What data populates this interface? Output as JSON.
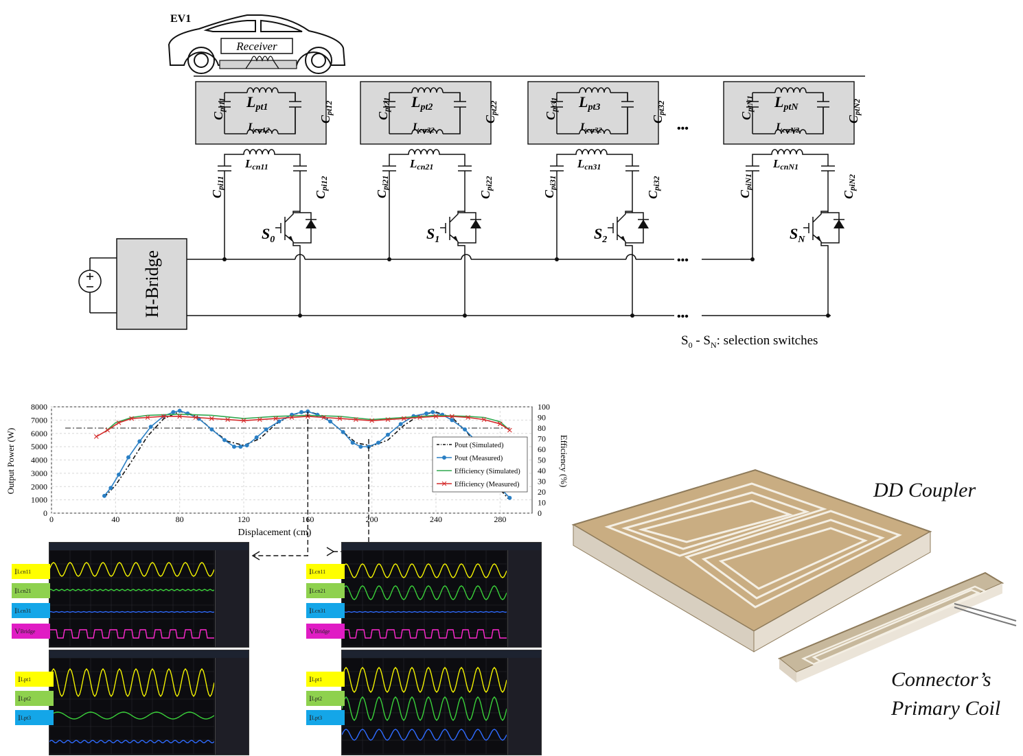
{
  "circuit": {
    "ev_label": "EV1",
    "receiver_label": "Receiver",
    "hbridge_label": "H-Bridge",
    "dots": "•••",
    "legend": {
      "s0": "S",
      "s0sub": "0",
      "dash": " - S",
      "snsub": "N",
      "text": ": selection switches"
    },
    "cells": [
      {
        "cl_b": "C",
        "cl_s": "pt11",
        "l_b": "L",
        "l_s": "pt1",
        "cr_b": "C",
        "cr_s": "pt12",
        "ln_b": "L",
        "ln_s": "cn12",
        "lc_b": "L",
        "lc_s": "cn11",
        "cpl_b": "C",
        "cpl_s": "pi11",
        "cpr_b": "C",
        "cpr_s": "pi12",
        "sw_b": "S",
        "sw_s": "0"
      },
      {
        "cl_b": "C",
        "cl_s": "pt21",
        "l_b": "L",
        "l_s": "pt2",
        "cr_b": "C",
        "cr_s": "pt22",
        "ln_b": "L",
        "ln_s": "cn22",
        "lc_b": "L",
        "lc_s": "cn21",
        "cpl_b": "C",
        "cpl_s": "pi21",
        "cpr_b": "C",
        "cpr_s": "pi22",
        "sw_b": "S",
        "sw_s": "1"
      },
      {
        "cl_b": "C",
        "cl_s": "pt31",
        "l_b": "L",
        "l_s": "pt3",
        "cr_b": "C",
        "cr_s": "pt32",
        "ln_b": "L",
        "ln_s": "cn32",
        "lc_b": "L",
        "lc_s": "cn31",
        "cpl_b": "C",
        "cpl_s": "pi31",
        "cpr_b": "C",
        "cpr_s": "pi32",
        "sw_b": "S",
        "sw_s": "2"
      },
      {
        "cl_b": "C",
        "cl_s": "ptN1",
        "l_b": "L",
        "l_s": "ptN",
        "cr_b": "C",
        "cr_s": "ptN2",
        "ln_b": "L",
        "ln_s": "cnN2",
        "lc_b": "L",
        "lc_s": "cnN1",
        "cpl_b": "C",
        "cpl_s": "piN1",
        "cpr_b": "C",
        "cpr_s": "piN2",
        "sw_b": "S",
        "sw_s": "N"
      }
    ]
  },
  "chart_data": {
    "type": "line",
    "xlabel": "Displacement (cm)",
    "ylabel": "Output Power (W)",
    "y2label": "Efficiency (%)",
    "xlim": [
      0,
      300
    ],
    "x_ticks": [
      0,
      40,
      80,
      120,
      160,
      200,
      240,
      280
    ],
    "ylim": [
      0,
      8000
    ],
    "y_ticks": [
      0,
      1000,
      2000,
      3000,
      4000,
      5000,
      6000,
      7000,
      8000
    ],
    "y2lim": [
      0,
      100
    ],
    "y2_ticks": [
      0,
      10,
      20,
      30,
      40,
      50,
      60,
      70,
      80,
      90,
      100
    ],
    "grid": true,
    "legend_position": "right",
    "reference_line": {
      "axis": "y2",
      "value": 80
    },
    "markers": [
      160,
      198
    ],
    "series": [
      {
        "name": "Pout (Simulated)",
        "axis": "y",
        "style": "dash-dot",
        "color": "#111111",
        "x": [
          33,
          40,
          50,
          60,
          70,
          80,
          90,
          100,
          110,
          120,
          130,
          140,
          150,
          160,
          170,
          180,
          190,
          200,
          210,
          220,
          230,
          240,
          250,
          260,
          270,
          280,
          285
        ],
        "y": [
          1200,
          2100,
          3900,
          5800,
          7100,
          7650,
          7350,
          6300,
          5400,
          5100,
          5600,
          6700,
          7400,
          7650,
          7300,
          6300,
          5300,
          5050,
          5500,
          6600,
          7400,
          7600,
          7200,
          6000,
          4000,
          1800,
          1100
        ]
      },
      {
        "name": "Pout (Measured)",
        "axis": "y",
        "style": "line-dot",
        "color": "#2a7fc4",
        "x": [
          33,
          37,
          42,
          48,
          55,
          62,
          70,
          76,
          80,
          85,
          92,
          100,
          108,
          114,
          118,
          122,
          128,
          134,
          142,
          150,
          156,
          160,
          166,
          174,
          182,
          188,
          193,
          198,
          204,
          210,
          218,
          226,
          234,
          238,
          244,
          250,
          258,
          266,
          274,
          280,
          286
        ],
        "y": [
          1300,
          1900,
          2900,
          4200,
          5400,
          6500,
          7300,
          7600,
          7700,
          7500,
          7100,
          6300,
          5500,
          5000,
          5000,
          5100,
          5700,
          6300,
          6900,
          7400,
          7600,
          7650,
          7400,
          6900,
          6100,
          5300,
          5000,
          5000,
          5300,
          5900,
          6700,
          7300,
          7500,
          7600,
          7400,
          7000,
          6300,
          5300,
          3400,
          1900,
          1150
        ]
      },
      {
        "name": "Efficiency (Simulated)",
        "axis": "y2",
        "style": "line",
        "color": "#2fa84f",
        "x": [
          33,
          40,
          50,
          60,
          80,
          100,
          120,
          140,
          160,
          180,
          200,
          220,
          240,
          260,
          270,
          280,
          286
        ],
        "y": [
          76,
          85,
          90,
          92,
          93,
          92,
          89,
          91,
          92,
          91,
          88,
          90,
          92,
          91,
          90,
          86,
          78
        ]
      },
      {
        "name": "Efficiency (Measured)",
        "axis": "y2",
        "style": "line-x",
        "color": "#d42a2a",
        "x": [
          28,
          35,
          42,
          50,
          60,
          70,
          80,
          90,
          100,
          110,
          120,
          130,
          140,
          150,
          160,
          170,
          180,
          190,
          200,
          210,
          220,
          230,
          240,
          250,
          260,
          270,
          280,
          286
        ],
        "y": [
          72,
          78,
          85,
          89,
          90,
          91,
          91,
          90,
          89,
          88,
          87,
          88,
          89,
          90,
          91,
          90,
          89,
          88,
          87,
          88,
          89,
          90,
          91,
          91,
          90,
          88,
          84,
          78
        ]
      }
    ]
  },
  "scopes": {
    "left": {
      "top_labels": [
        {
          "b": "I",
          "s": "Lcn11"
        },
        {
          "b": "I",
          "s": "Lcn21"
        },
        {
          "b": "I",
          "s": "Lcn31"
        },
        {
          "b": "V",
          "s": "Bridge"
        }
      ],
      "bottom_labels": [
        {
          "b": "I",
          "s": "Lpt1"
        },
        {
          "b": "I",
          "s": "Lpt2"
        },
        {
          "b": "I",
          "s": "Lpt3"
        }
      ]
    },
    "right": {
      "top_labels": [
        {
          "b": "I",
          "s": "Lcn11"
        },
        {
          "b": "I",
          "s": "Lcn21"
        },
        {
          "b": "I",
          "s": "Lcn31"
        },
        {
          "b": "V",
          "s": "Bridge"
        }
      ],
      "bottom_labels": [
        {
          "b": "I",
          "s": "Lpt1"
        },
        {
          "b": "I",
          "s": "Lpt2"
        },
        {
          "b": "I",
          "s": "Lpt3"
        }
      ]
    },
    "colors": {
      "ch1": "#f2f200",
      "ch2": "#3ad13a",
      "ch3": "#2f6bff",
      "ch4": "#ff2ad0",
      "tag_yellow": "#ffff00",
      "tag_green": "#8ed14e",
      "tag_blue": "#14a6e8",
      "tag_magenta": "#e01cc4"
    }
  },
  "photo": {
    "title": "DD Coupler",
    "caption_line1": "Connector’s",
    "caption_line2": "Primary Coil"
  }
}
